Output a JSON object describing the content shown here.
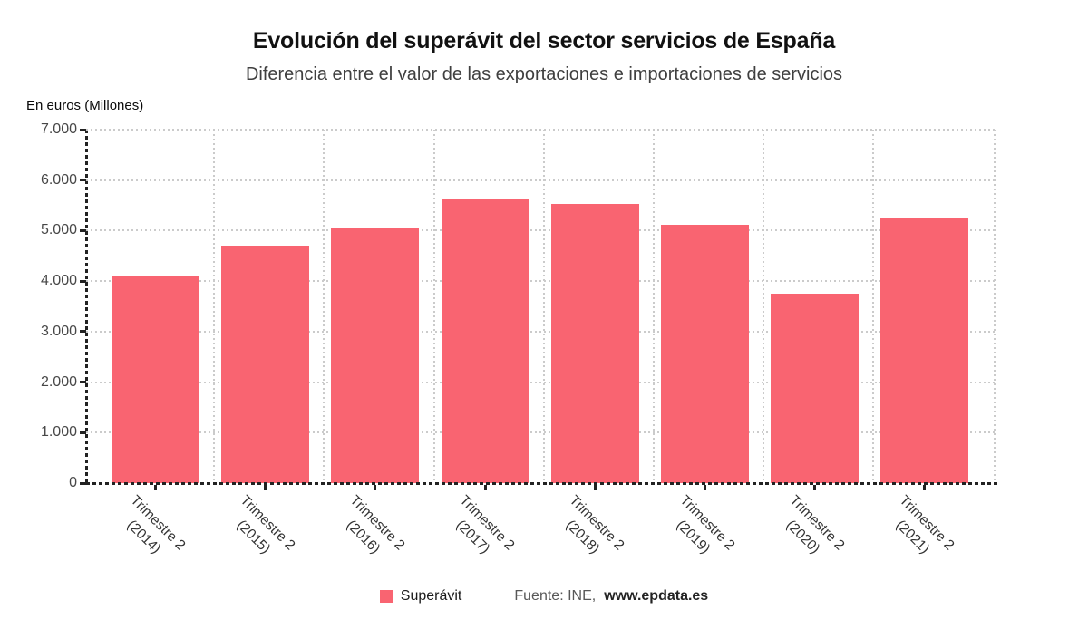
{
  "header": {
    "title": "Evolución del superávit del sector servicios de España",
    "subtitle": "Diferencia entre el valor de las exportaciones e importaciones de servicios"
  },
  "y_axis_title": "En euros (Millones)",
  "legend": {
    "label": "Superávit"
  },
  "source": {
    "prefix": "Fuente: INE, ",
    "link": "www.epdata.es"
  },
  "chart_data": {
    "type": "bar",
    "title": "Evolución del superávit del sector servicios de España",
    "subtitle": "Diferencia entre el valor de las exportaciones e importaciones de servicios",
    "ylabel": "En euros (Millones)",
    "xlabel": "",
    "categories": [
      "Trimestre 2 (2014)",
      "Trimestre 2 (2015)",
      "Trimestre 2 (2016)",
      "Trimestre 2 (2017)",
      "Trimestre 2 (2018)",
      "Trimestre 2 (2019)",
      "Trimestre 2 (2020)",
      "Trimestre 2 (2021)"
    ],
    "category_lines": [
      [
        "Trimestre 2",
        "(2014)"
      ],
      [
        "Trimestre 2",
        "(2015)"
      ],
      [
        "Trimestre 2",
        "(2016)"
      ],
      [
        "Trimestre 2",
        "(2017)"
      ],
      [
        "Trimestre 2",
        "(2018)"
      ],
      [
        "Trimestre 2",
        "(2019)"
      ],
      [
        "Trimestre 2",
        "(2020)"
      ],
      [
        "Trimestre 2",
        "(2021)"
      ]
    ],
    "years": [
      "2014",
      "2015",
      "2016",
      "2017",
      "2018",
      "2019",
      "2020",
      "2021"
    ],
    "values": [
      4100,
      4710,
      5060,
      5610,
      5520,
      5120,
      3760,
      5250
    ],
    "series_name": "Superávit",
    "ylim": [
      0,
      7000
    ],
    "ytick_step": 1000,
    "ytick_labels": [
      "0",
      "1.000",
      "2.000",
      "3.000",
      "4.000",
      "5.000",
      "6.000",
      "7.000"
    ],
    "bar_color": "#F96471",
    "grid": true,
    "legend_position": "bottom"
  }
}
